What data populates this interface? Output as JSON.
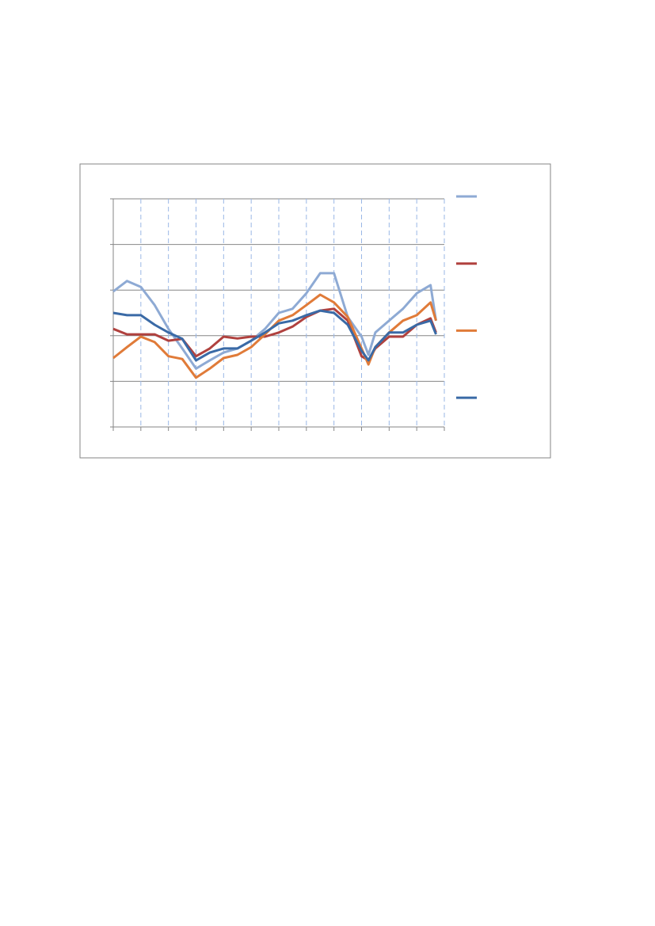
{
  "chart_data": {
    "type": "line",
    "x": [
      0,
      0.5,
      1,
      1.5,
      2,
      2.5,
      3,
      3.5,
      4,
      4.5,
      5,
      5.5,
      6,
      6.5,
      7,
      7.5,
      8,
      8.5,
      9,
      9.25,
      9.5,
      10,
      10.5,
      11,
      11.5,
      11.7
    ],
    "series": [
      {
        "color": "#8eaad4",
        "values": [
          2.97,
          3.2,
          3.07,
          2.67,
          2.15,
          1.72,
          1.28,
          1.46,
          1.63,
          1.72,
          1.89,
          2.15,
          2.5,
          2.59,
          2.93,
          3.37,
          3.37,
          2.41,
          1.98,
          1.58,
          2.07,
          2.33,
          2.59,
          2.93,
          3.11,
          2.33
        ]
      },
      {
        "color": "#b0413e",
        "values": [
          2.15,
          2.03,
          2.03,
          2.03,
          1.89,
          1.93,
          1.55,
          1.72,
          1.98,
          1.94,
          1.98,
          1.98,
          2.07,
          2.2,
          2.41,
          2.55,
          2.59,
          2.33,
          1.55,
          1.46,
          1.72,
          1.98,
          1.98,
          2.24,
          2.38,
          2.07
        ]
      },
      {
        "color": "#e07b39",
        "values": [
          1.51,
          1.75,
          1.98,
          1.86,
          1.55,
          1.49,
          1.08,
          1.28,
          1.51,
          1.58,
          1.75,
          2.03,
          2.33,
          2.45,
          2.67,
          2.9,
          2.73,
          2.41,
          1.72,
          1.37,
          1.75,
          2.07,
          2.33,
          2.45,
          2.73,
          2.33
        ]
      },
      {
        "color": "#3a6aa6",
        "values": [
          2.5,
          2.45,
          2.45,
          2.24,
          2.07,
          1.93,
          1.46,
          1.63,
          1.72,
          1.72,
          1.89,
          2.07,
          2.27,
          2.33,
          2.45,
          2.55,
          2.5,
          2.24,
          1.67,
          1.46,
          1.75,
          2.07,
          2.07,
          2.24,
          2.33,
          2.03
        ]
      }
    ],
    "xlim": [
      0,
      12
    ],
    "xticks": [
      0,
      1,
      2,
      3,
      4,
      5,
      6,
      7,
      8,
      9,
      10,
      11,
      12
    ],
    "ylim": [
      0,
      5
    ],
    "yticks": [
      0,
      1,
      2,
      3,
      4,
      5
    ],
    "grid": true,
    "legend": "right"
  }
}
